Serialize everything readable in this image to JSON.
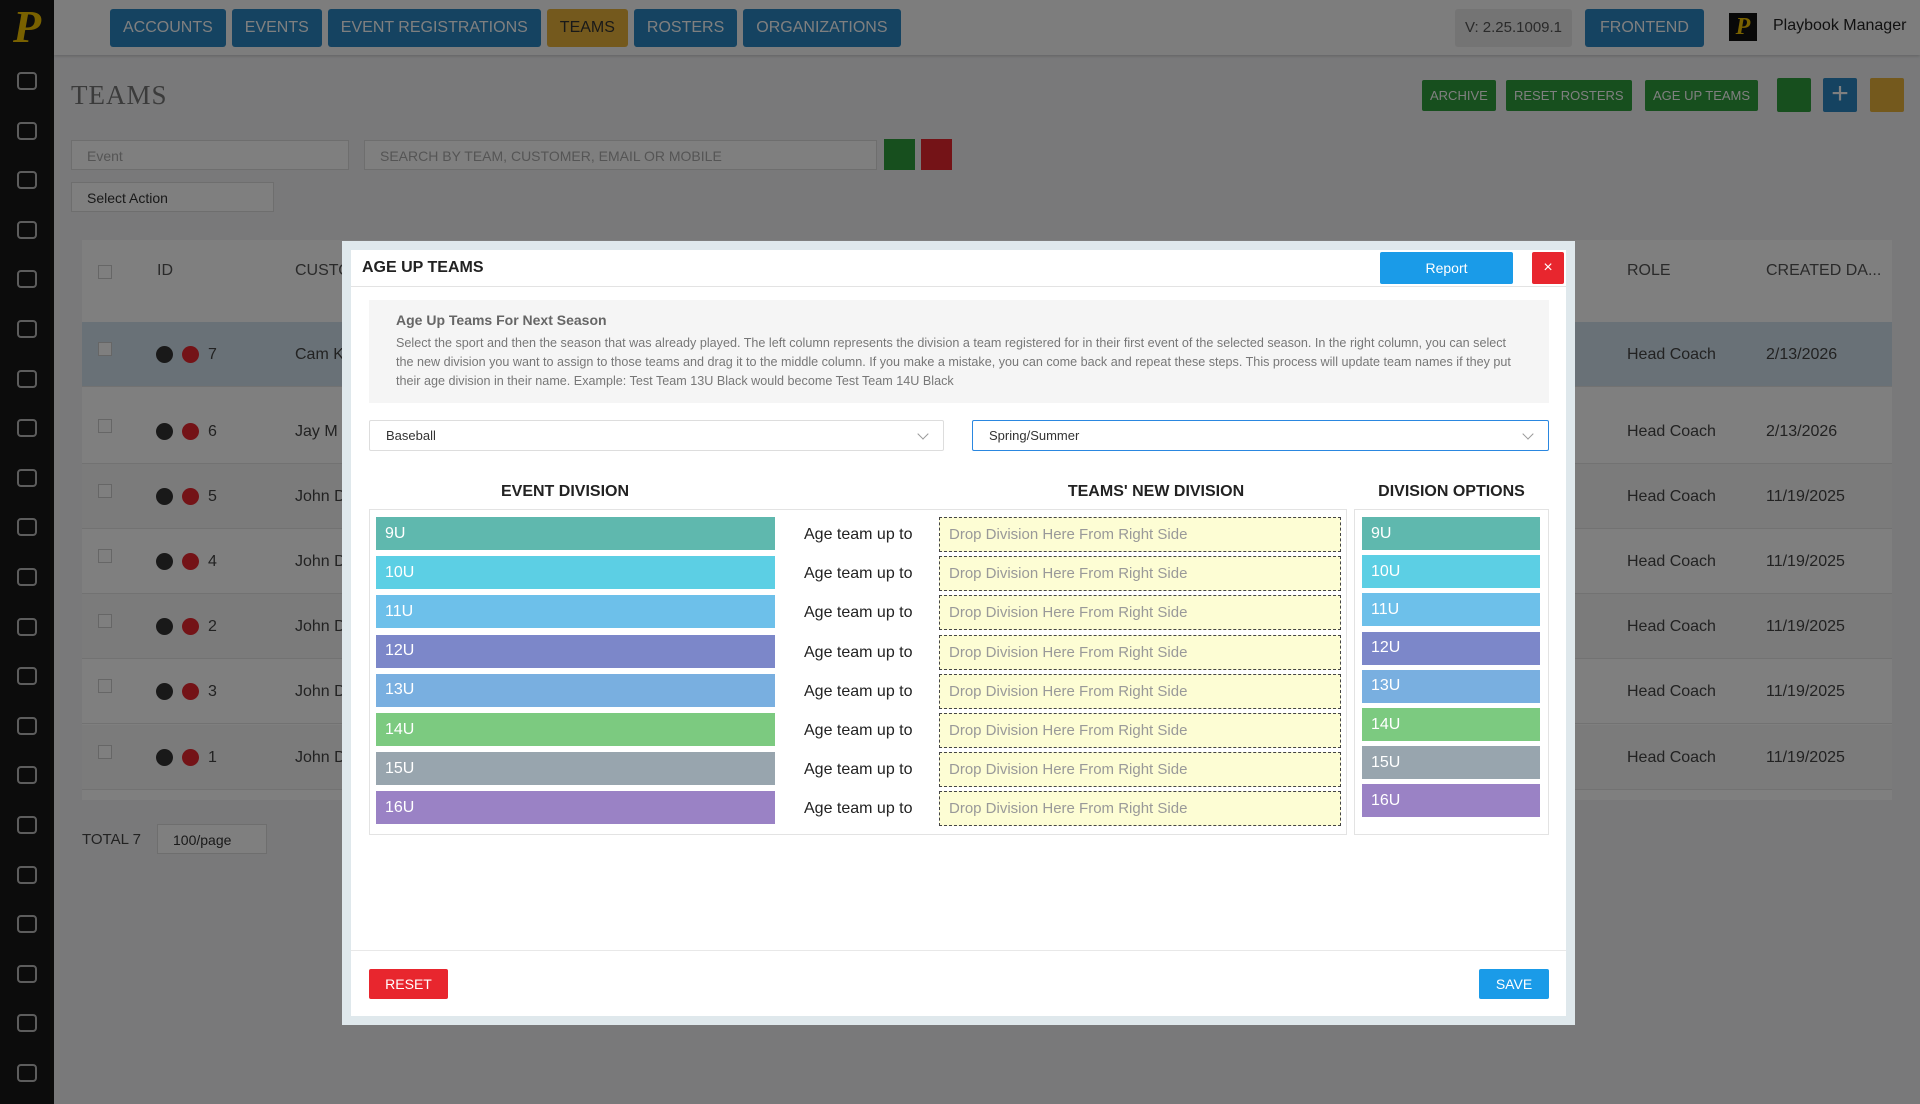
{
  "sidebar": {
    "logo": "P"
  },
  "topbar": {
    "nav": [
      "ACCOUNTS",
      "EVENTS",
      "EVENT REGISTRATIONS",
      "TEAMS",
      "ROSTERS",
      "ORGANIZATIONS"
    ],
    "version": "V: 2.25.1009.1",
    "frontend": "FRONTEND",
    "user_logo": "P",
    "user": "Playbook Manager"
  },
  "page": {
    "title": "TEAMS",
    "actions": [
      "ARCHIVE",
      "RESET ROSTERS",
      "AGE UP TEAMS"
    ],
    "filters": {
      "event": "Event",
      "search": "SEARCH BY TEAM, CUSTOMER, EMAIL OR MOBILE",
      "action": "Select Action"
    },
    "table": {
      "headers": {
        "id": "ID",
        "customer": "CUSTO",
        "role": "ROLE",
        "created": "CREATED DA..."
      },
      "rows": [
        {
          "id": 7,
          "customer": "Cam K",
          "role": "Head Coach",
          "created": "2/13/2026"
        },
        {
          "id": 6,
          "customer": "Jay M",
          "role": "Head Coach",
          "created": "2/13/2026"
        },
        {
          "id": 5,
          "customer": "John D",
          "role": "Head Coach",
          "created": "11/19/2025"
        },
        {
          "id": 4,
          "customer": "John D",
          "role": "Head Coach",
          "created": "11/19/2025"
        },
        {
          "id": 2,
          "customer": "John D",
          "role": "Head Coach",
          "created": "11/19/2025"
        },
        {
          "id": 3,
          "customer": "John D",
          "role": "Head Coach",
          "created": "11/19/2025"
        },
        {
          "id": 1,
          "customer": "John D",
          "role": "Head Coach",
          "created": "11/19/2025"
        }
      ]
    },
    "footer": {
      "total": "TOTAL 7",
      "page_size": "100/page"
    }
  },
  "modal": {
    "title": "AGE UP TEAMS",
    "report": "Report",
    "close": "×",
    "info": {
      "title": "Age Up Teams For Next Season",
      "text": "Select the sport and then the season that was already played. The left column represents the division a team registered for in their first event of the selected season. In the right column, you can select the new division you want to assign to those teams and drag it to the middle column. If you make a mistake, you can come back and repeat these steps. This process will update team names if they put their age division in their name. Example: Test Team 13U Black would become Test Team 14U Black"
    },
    "sport": "Baseball",
    "season": "Spring/Summer",
    "columns": {
      "event": "EVENT DIVISION",
      "new": "TEAMS' NEW DIVISION",
      "options": "DIVISION OPTIONS"
    },
    "row_label": "Age team up to",
    "drop_placeholder": "Drop Division Here From Right Side",
    "divisions": [
      {
        "name": "9U",
        "color": "#5fb8ae"
      },
      {
        "name": "10U",
        "color": "#5ccfe4"
      },
      {
        "name": "11U",
        "color": "#6dc0ea"
      },
      {
        "name": "12U",
        "color": "#7c87c9"
      },
      {
        "name": "13U",
        "color": "#79afe0"
      },
      {
        "name": "14U",
        "color": "#7cca80"
      },
      {
        "name": "15U",
        "color": "#98a5ae"
      },
      {
        "name": "16U",
        "color": "#9a82c5"
      }
    ],
    "reset": "RESET",
    "save": "SAVE"
  }
}
